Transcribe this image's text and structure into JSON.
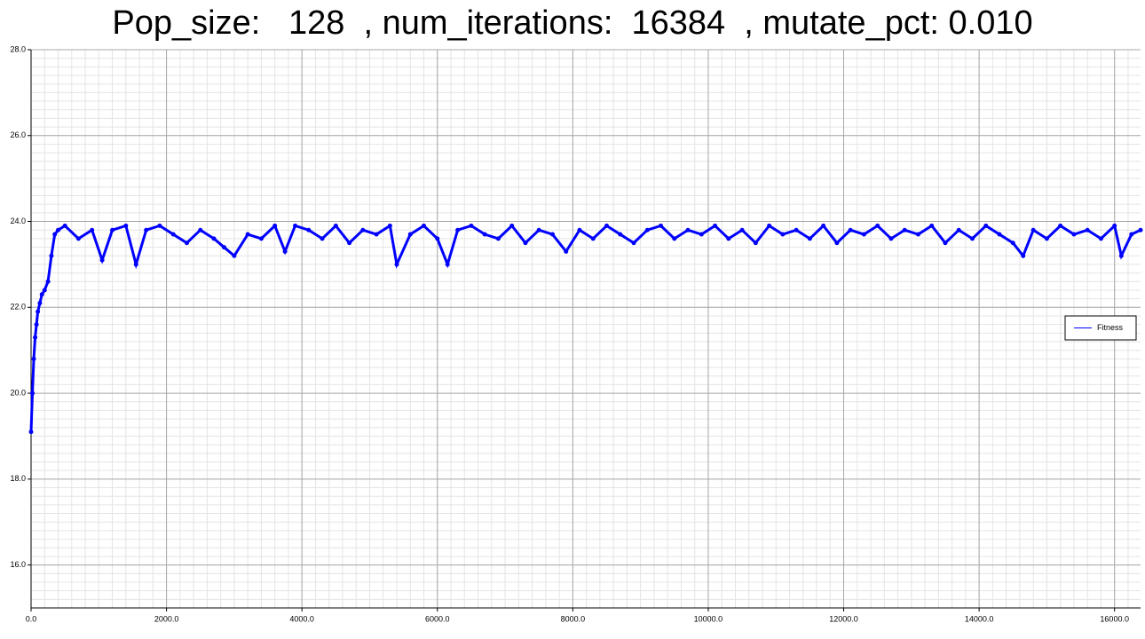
{
  "chart_data": {
    "type": "line",
    "title": "Pop_size:   128  , num_iterations:  16384  , mutate_pct: 0.010",
    "x": [
      0,
      20,
      40,
      60,
      80,
      100,
      130,
      160,
      200,
      250,
      300,
      350,
      400,
      500,
      700,
      900,
      1050,
      1200,
      1400,
      1550,
      1700,
      1900,
      2100,
      2300,
      2500,
      2700,
      2850,
      3000,
      3200,
      3400,
      3600,
      3750,
      3900,
      4100,
      4300,
      4500,
      4700,
      4900,
      5100,
      5300,
      5400,
      5600,
      5800,
      6000,
      6150,
      6300,
      6500,
      6700,
      6900,
      7100,
      7300,
      7500,
      7700,
      7900,
      8100,
      8300,
      8500,
      8700,
      8900,
      9100,
      9300,
      9500,
      9700,
      9900,
      10100,
      10300,
      10500,
      10700,
      10900,
      11100,
      11300,
      11500,
      11700,
      11900,
      12100,
      12300,
      12500,
      12700,
      12900,
      13100,
      13300,
      13500,
      13700,
      13900,
      14100,
      14300,
      14500,
      14650,
      14800,
      15000,
      15200,
      15400,
      15600,
      15800,
      16000,
      16100,
      16250,
      16384
    ],
    "series": [
      {
        "name": "Fitness",
        "color": "#0000ff",
        "values": [
          19.1,
          20.0,
          20.8,
          21.3,
          21.6,
          21.9,
          22.1,
          22.3,
          22.4,
          22.6,
          23.2,
          23.7,
          23.8,
          23.9,
          23.6,
          23.8,
          23.1,
          23.8,
          23.9,
          23.0,
          23.8,
          23.9,
          23.7,
          23.5,
          23.8,
          23.6,
          23.4,
          23.2,
          23.7,
          23.6,
          23.9,
          23.3,
          23.9,
          23.8,
          23.6,
          23.9,
          23.5,
          23.8,
          23.7,
          23.9,
          23.0,
          23.7,
          23.9,
          23.6,
          23.0,
          23.8,
          23.9,
          23.7,
          23.6,
          23.9,
          23.5,
          23.8,
          23.7,
          23.3,
          23.8,
          23.6,
          23.9,
          23.7,
          23.5,
          23.8,
          23.9,
          23.6,
          23.8,
          23.7,
          23.9,
          23.6,
          23.8,
          23.5,
          23.9,
          23.7,
          23.8,
          23.6,
          23.9,
          23.5,
          23.8,
          23.7,
          23.9,
          23.6,
          23.8,
          23.7,
          23.9,
          23.5,
          23.8,
          23.6,
          23.9,
          23.7,
          23.5,
          23.2,
          23.8,
          23.6,
          23.9,
          23.7,
          23.8,
          23.6,
          23.9,
          23.2,
          23.7,
          23.8
        ]
      }
    ],
    "xlim": [
      0,
      16384
    ],
    "ylim": [
      15,
      28
    ],
    "xticks": [
      {
        "value": 0,
        "label": "0.0"
      },
      {
        "value": 2000,
        "label": "2000.0"
      },
      {
        "value": 4000,
        "label": "4000.0"
      },
      {
        "value": 6000,
        "label": "6000.0"
      },
      {
        "value": 8000,
        "label": "8000.0"
      },
      {
        "value": 10000,
        "label": "10000.0"
      },
      {
        "value": 12000,
        "label": "12000.0"
      },
      {
        "value": 14000,
        "label": "14000.0"
      },
      {
        "value": 16000,
        "label": "16000.0"
      }
    ],
    "yticks": [
      {
        "value": 16,
        "label": "16.0"
      },
      {
        "value": 18,
        "label": "18.0"
      },
      {
        "value": 20,
        "label": "20.0"
      },
      {
        "value": 22,
        "label": "22.0"
      },
      {
        "value": 24,
        "label": "24.0"
      },
      {
        "value": 26,
        "label": "26.0"
      },
      {
        "value": 28,
        "label": "28.0"
      }
    ],
    "grid": true,
    "minor_grid": true,
    "legend": "right"
  }
}
